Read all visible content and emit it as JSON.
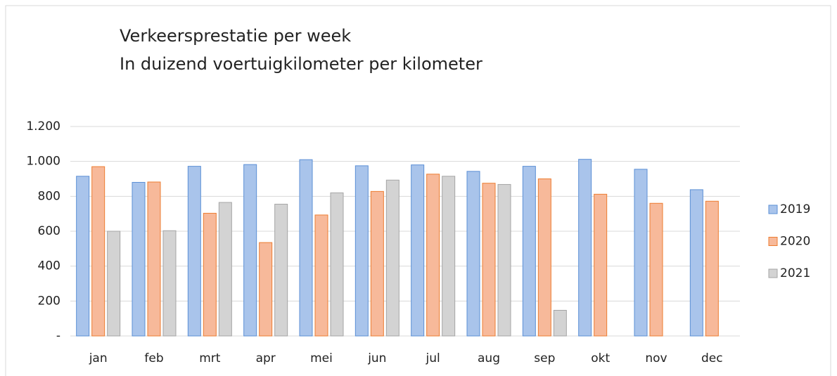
{
  "chart_data": {
    "type": "bar",
    "title": "Verkeersprestatie per week",
    "subtitle": "In duizend voertuigkilometer per kilometer",
    "categories": [
      "jan",
      "feb",
      "mrt",
      "apr",
      "mei",
      "jun",
      "jul",
      "aug",
      "sep",
      "okt",
      "nov",
      "dec"
    ],
    "series": [
      {
        "name": "2019",
        "color": "#a9c4eb",
        "stroke": "#5b8fd6",
        "values": [
          915,
          880,
          972,
          982,
          1010,
          975,
          980,
          943,
          972,
          1012,
          955,
          838
        ]
      },
      {
        "name": "2020",
        "color": "#f7b99a",
        "stroke": "#ed7d31",
        "values": [
          970,
          882,
          703,
          535,
          693,
          828,
          927,
          875,
          900,
          812,
          760,
          772
        ]
      },
      {
        "name": "2021",
        "color": "#d3d3d3",
        "stroke": "#a5a5a5",
        "values": [
          600,
          603,
          765,
          755,
          820,
          893,
          915,
          868,
          147,
          null,
          null,
          null
        ]
      }
    ],
    "ylim": [
      0,
      1200
    ],
    "yticks": [
      {
        "value": 0,
        "label": "-"
      },
      200,
      400,
      600,
      800,
      {
        "value": 1000,
        "label": "1.000"
      },
      {
        "value": 1200,
        "label": "1.200"
      }
    ],
    "grid": true,
    "legend": "right"
  }
}
